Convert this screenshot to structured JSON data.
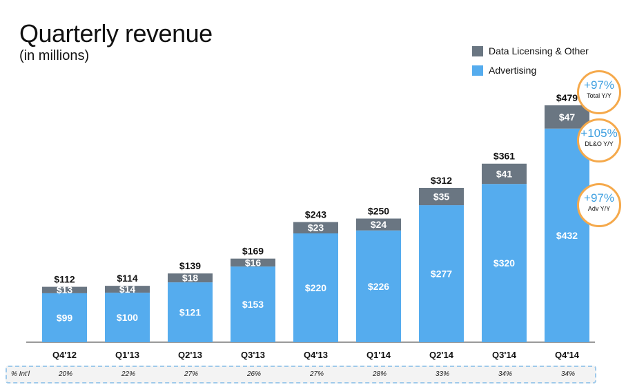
{
  "header": {
    "title": "Quarterly revenue",
    "subtitle": "(in millions)"
  },
  "legend": [
    {
      "label": "Data Licensing & Other",
      "color": "#6a7682"
    },
    {
      "label": "Advertising",
      "color": "#55acee"
    }
  ],
  "badges": [
    {
      "value": "+97%",
      "label": "Total Y/Y"
    },
    {
      "value": "+105%",
      "label": "DL&O Y/Y"
    },
    {
      "value": "+97%",
      "label": "Adv Y/Y"
    }
  ],
  "intl_row": {
    "label": "% Int'l",
    "values": [
      "20%",
      "22%",
      "27%",
      "26%",
      "27%",
      "28%",
      "33%",
      "34%",
      "34%"
    ]
  },
  "chart_data": {
    "type": "bar",
    "stacked": true,
    "title": "Quarterly revenue",
    "subtitle": "(in millions)",
    "categories": [
      "Q4'12",
      "Q1'13",
      "Q2'13",
      "Q3'13",
      "Q4'13",
      "Q1'14",
      "Q2'14",
      "Q3'14",
      "Q4'14"
    ],
    "series": [
      {
        "name": "Advertising",
        "color": "#55acee",
        "values": [
          99,
          100,
          121,
          153,
          220,
          226,
          277,
          320,
          432
        ],
        "labels": [
          "$99",
          "$100",
          "$121",
          "$153",
          "$220",
          "$226",
          "$277",
          "$320",
          "$432"
        ]
      },
      {
        "name": "Data Licensing & Other",
        "color": "#6a7682",
        "values": [
          13,
          14,
          18,
          16,
          23,
          24,
          35,
          41,
          47
        ],
        "labels": [
          "$13",
          "$14",
          "$18",
          "$16",
          "$23",
          "$24",
          "$35",
          "$41",
          "$47"
        ]
      }
    ],
    "totals": [
      112,
      114,
      139,
      169,
      243,
      250,
      312,
      361,
      479
    ],
    "total_labels": [
      "$112",
      "$114",
      "$139",
      "$169",
      "$243",
      "$250",
      "$312",
      "$361",
      "$479"
    ],
    "ylim": [
      0,
      500
    ],
    "xlabel": "",
    "ylabel": "",
    "grid": false,
    "legend_position": "top-right"
  }
}
